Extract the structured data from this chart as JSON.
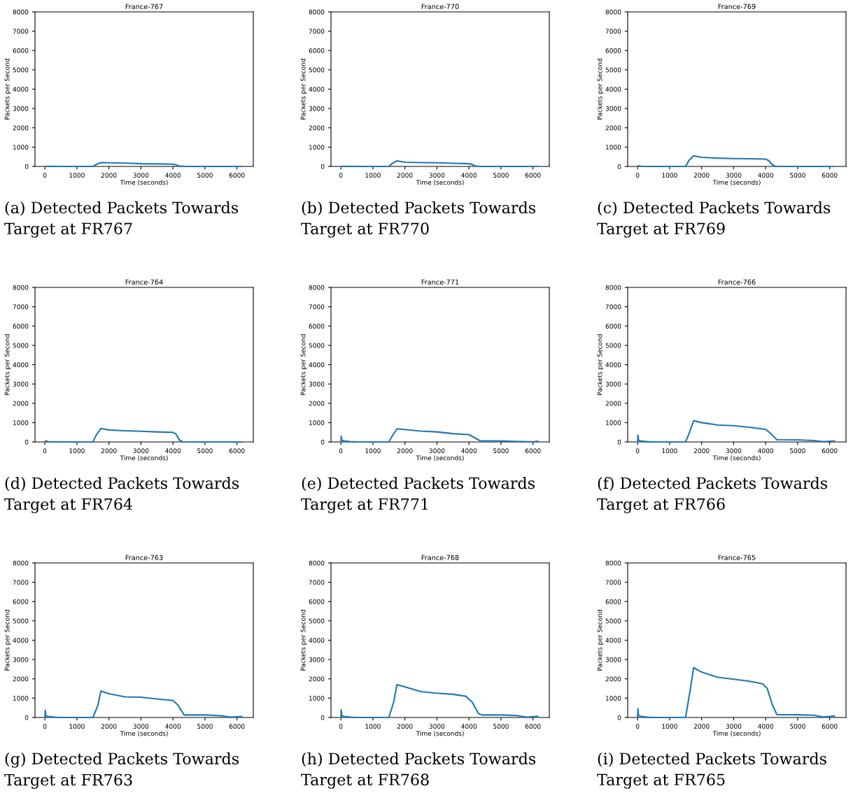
{
  "chart_data": [
    {
      "type": "line",
      "title": "France-767",
      "xlabel": "Time (seconds)",
      "ylabel": "Packets per Second",
      "xlim": [
        -310,
        6510
      ],
      "ylim": [
        0,
        8000
      ],
      "xticks": [
        0,
        1000,
        2000,
        3000,
        4000,
        5000,
        6000
      ],
      "yticks": [
        0,
        1000,
        2000,
        3000,
        4000,
        5000,
        6000,
        7000,
        8000
      ],
      "grid": false,
      "legend": false,
      "annotations": [
        "(a) Detected Packets Towards Target at FR767"
      ],
      "series": [
        {
          "color": "#1f77b4",
          "x": [
            0,
            100,
            500,
            1000,
            1500,
            1600,
            1750,
            2000,
            2500,
            3000,
            3500,
            4000,
            4100,
            4200,
            4400,
            5000,
            6000,
            6150
          ],
          "values": [
            0,
            10,
            0,
            0,
            0,
            100,
            200,
            190,
            170,
            140,
            130,
            120,
            80,
            20,
            0,
            0,
            0,
            0
          ]
        }
      ]
    },
    {
      "type": "line",
      "title": "France-770",
      "xlabel": "Time (seconds)",
      "ylabel": "Packets per Second",
      "xlim": [
        -310,
        6510
      ],
      "ylim": [
        0,
        8000
      ],
      "xticks": [
        0,
        1000,
        2000,
        3000,
        4000,
        5000,
        6000
      ],
      "yticks": [
        0,
        1000,
        2000,
        3000,
        4000,
        5000,
        6000,
        7000,
        8000
      ],
      "grid": false,
      "legend": false,
      "annotations": [
        "(b) Detected Packets Towards Target at FR770"
      ],
      "series": [
        {
          "color": "#1f77b4",
          "x": [
            0,
            100,
            500,
            1000,
            1500,
            1600,
            1750,
            2000,
            2500,
            3000,
            3500,
            4000,
            4100,
            4200,
            4300,
            5000,
            6000,
            6150
          ],
          "values": [
            0,
            10,
            0,
            0,
            0,
            150,
            290,
            220,
            200,
            190,
            160,
            140,
            100,
            30,
            0,
            0,
            0,
            0
          ]
        }
      ]
    },
    {
      "type": "line",
      "title": "France-769",
      "xlabel": "Time (seconds)",
      "ylabel": "Packets per Second",
      "xlim": [
        -310,
        6510
      ],
      "ylim": [
        0,
        8000
      ],
      "xticks": [
        0,
        1000,
        2000,
        3000,
        4000,
        5000,
        6000
      ],
      "yticks": [
        0,
        1000,
        2000,
        3000,
        4000,
        5000,
        6000,
        7000,
        8000
      ],
      "grid": false,
      "legend": false,
      "annotations": [
        "(c) Detected Packets Towards Target at FR769"
      ],
      "series": [
        {
          "color": "#1f77b4",
          "x": [
            0,
            50,
            100,
            300,
            1000,
            1500,
            1600,
            1750,
            2000,
            2500,
            3000,
            3500,
            4000,
            4100,
            4200,
            4300,
            5000,
            6000,
            6150
          ],
          "values": [
            0,
            40,
            10,
            0,
            0,
            10,
            300,
            550,
            470,
            430,
            410,
            400,
            380,
            300,
            100,
            10,
            0,
            0,
            0
          ]
        }
      ]
    },
    {
      "type": "line",
      "title": "France-764",
      "xlabel": "Time (seconds)",
      "ylabel": "Packets per Second",
      "xlim": [
        -310,
        6510
      ],
      "ylim": [
        0,
        8000
      ],
      "xticks": [
        0,
        1000,
        2000,
        3000,
        4000,
        5000,
        6000
      ],
      "yticks": [
        0,
        1000,
        2000,
        3000,
        4000,
        5000,
        6000,
        7000,
        8000
      ],
      "grid": false,
      "legend": false,
      "annotations": [
        "(d) Detected Packets Towards Target at FR764"
      ],
      "series": [
        {
          "color": "#1f77b4",
          "x": [
            0,
            20,
            100,
            300,
            1000,
            1500,
            1600,
            1750,
            2000,
            2500,
            3000,
            3500,
            4000,
            4100,
            4200,
            4300,
            5000,
            6000,
            6150
          ],
          "values": [
            0,
            50,
            20,
            10,
            0,
            10,
            350,
            700,
            620,
            580,
            550,
            520,
            500,
            400,
            100,
            10,
            0,
            0,
            0
          ]
        }
      ]
    },
    {
      "type": "line",
      "title": "France-771",
      "xlabel": "Time (seconds)",
      "ylabel": "Packets per Second",
      "xlim": [
        -310,
        6510
      ],
      "ylim": [
        0,
        8000
      ],
      "xticks": [
        0,
        1000,
        2000,
        3000,
        4000,
        5000,
        6000
      ],
      "yticks": [
        0,
        1000,
        2000,
        3000,
        4000,
        5000,
        6000,
        7000,
        8000
      ],
      "grid": false,
      "legend": false,
      "annotations": [
        "(e) Detected Packets Towards Target at FR771"
      ],
      "series": [
        {
          "color": "#1f77b4",
          "x": [
            0,
            10,
            30,
            100,
            300,
            500,
            1000,
            1500,
            1600,
            1750,
            2000,
            2500,
            3000,
            3500,
            4000,
            4200,
            4350,
            5000,
            5500,
            6000,
            6150
          ],
          "values": [
            0,
            300,
            80,
            50,
            20,
            0,
            0,
            10,
            300,
            680,
            640,
            560,
            520,
            430,
            380,
            200,
            60,
            50,
            30,
            10,
            40
          ]
        }
      ]
    },
    {
      "type": "line",
      "title": "France-766",
      "xlabel": "Time (seconds)",
      "ylabel": "Packets per Second",
      "xlim": [
        -310,
        6510
      ],
      "ylim": [
        0,
        8000
      ],
      "xticks": [
        0,
        1000,
        2000,
        3000,
        4000,
        5000,
        6000
      ],
      "yticks": [
        0,
        1000,
        2000,
        3000,
        4000,
        5000,
        6000,
        7000,
        8000
      ],
      "grid": false,
      "legend": false,
      "annotations": [
        "(f) Detected Packets Towards Target at FR766"
      ],
      "series": [
        {
          "color": "#1f77b4",
          "x": [
            0,
            10,
            30,
            100,
            300,
            500,
            1000,
            1500,
            1600,
            1750,
            2000,
            2500,
            3000,
            3500,
            4000,
            4150,
            4350,
            5000,
            5500,
            5800,
            6150
          ],
          "values": [
            0,
            350,
            80,
            50,
            20,
            0,
            0,
            10,
            400,
            1100,
            1000,
            880,
            840,
            760,
            650,
            450,
            120,
            110,
            70,
            20,
            50
          ]
        }
      ]
    },
    {
      "type": "line",
      "title": "France-763",
      "xlabel": "Time (seconds)",
      "ylabel": "Packets per Second",
      "xlim": [
        -310,
        6510
      ],
      "ylim": [
        0,
        8000
      ],
      "xticks": [
        0,
        1000,
        2000,
        3000,
        4000,
        5000,
        6000
      ],
      "yticks": [
        0,
        1000,
        2000,
        3000,
        4000,
        5000,
        6000,
        7000,
        8000
      ],
      "grid": false,
      "legend": false,
      "annotations": [
        "(g) Detected Packets Towards Target at FR763"
      ],
      "series": [
        {
          "color": "#1f77b4",
          "x": [
            0,
            10,
            30,
            100,
            300,
            500,
            1000,
            1500,
            1650,
            1750,
            2000,
            2500,
            3000,
            3500,
            4000,
            4150,
            4350,
            5000,
            5500,
            5800,
            6150
          ],
          "values": [
            0,
            380,
            80,
            50,
            20,
            0,
            0,
            10,
            600,
            1370,
            1230,
            1070,
            1050,
            960,
            880,
            650,
            130,
            130,
            90,
            20,
            50
          ]
        }
      ]
    },
    {
      "type": "line",
      "title": "France-768",
      "xlabel": "Time (seconds)",
      "ylabel": "Packets per Second",
      "xlim": [
        -310,
        6510
      ],
      "ylim": [
        0,
        8000
      ],
      "xticks": [
        0,
        1000,
        2000,
        3000,
        4000,
        5000,
        6000
      ],
      "yticks": [
        0,
        1000,
        2000,
        3000,
        4000,
        5000,
        6000,
        7000,
        8000
      ],
      "grid": false,
      "legend": false,
      "annotations": [
        "(h) Detected Packets Towards Target at FR768"
      ],
      "series": [
        {
          "color": "#1f77b4",
          "x": [
            0,
            10,
            30,
            100,
            300,
            500,
            1000,
            1500,
            1650,
            1750,
            2000,
            2500,
            3000,
            3500,
            3900,
            4100,
            4300,
            4400,
            5000,
            5500,
            5800,
            6150
          ],
          "values": [
            0,
            400,
            80,
            50,
            20,
            0,
            0,
            10,
            800,
            1700,
            1580,
            1340,
            1260,
            1200,
            1100,
            800,
            200,
            130,
            130,
            100,
            20,
            60
          ]
        }
      ]
    },
    {
      "type": "line",
      "title": "France-765",
      "xlabel": "Time (seconds)",
      "ylabel": "Packets per Second",
      "xlim": [
        -310,
        6510
      ],
      "ylim": [
        0,
        8000
      ],
      "xticks": [
        0,
        1000,
        2000,
        3000,
        4000,
        5000,
        6000
      ],
      "yticks": [
        0,
        1000,
        2000,
        3000,
        4000,
        5000,
        6000,
        7000,
        8000
      ],
      "grid": false,
      "legend": false,
      "annotations": [
        "(i) Detected Packets Towards Target at FR765"
      ],
      "series": [
        {
          "color": "#1f77b4",
          "x": [
            0,
            10,
            30,
            100,
            300,
            500,
            1000,
            1500,
            1650,
            1750,
            2000,
            2500,
            3000,
            3500,
            3900,
            4050,
            4200,
            4350,
            5000,
            5500,
            5800,
            6150
          ],
          "values": [
            0,
            450,
            100,
            60,
            20,
            0,
            0,
            10,
            1500,
            2580,
            2350,
            2080,
            1980,
            1870,
            1750,
            1500,
            700,
            150,
            140,
            120,
            30,
            80
          ]
        }
      ]
    }
  ]
}
